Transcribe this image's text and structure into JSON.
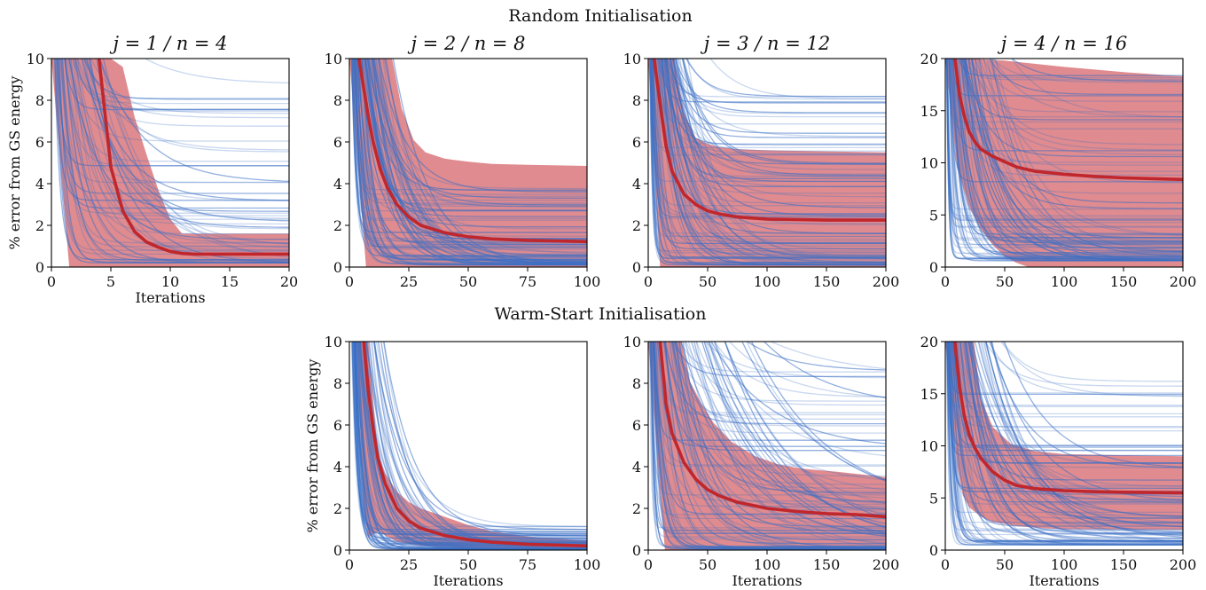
{
  "figure": {
    "row_titles": [
      "Random Initialisation",
      "Warm-Start Initialisation"
    ]
  },
  "chart_data": [
    {
      "type": "line",
      "row": 0,
      "title": "j = 1 / n = 4",
      "xlabel": "Iterations",
      "ylabel": "% error from GS energy",
      "xlim": [
        0,
        20
      ],
      "ylim": [
        0,
        10
      ],
      "xticks": [
        0,
        5,
        10,
        15,
        20
      ],
      "yticks": [
        0,
        2,
        4,
        6,
        8,
        10
      ],
      "grid": false,
      "mean": {
        "x": [
          4,
          5,
          6,
          7,
          8,
          9,
          10,
          11,
          12,
          14,
          16,
          18,
          20
        ],
        "y": [
          10,
          4.8,
          2.7,
          1.7,
          1.2,
          0.95,
          0.75,
          0.65,
          0.62,
          0.62,
          0.62,
          0.62,
          0.62
        ]
      },
      "band_upper": {
        "x": [
          0,
          3,
          4,
          5,
          6,
          7,
          8,
          9,
          10,
          11,
          12,
          14,
          16,
          18,
          20
        ],
        "y": [
          10,
          10,
          10,
          10,
          9.6,
          7.2,
          5.4,
          3.7,
          2.3,
          1.6,
          1.6,
          1.6,
          1.6,
          1.6,
          1.6
        ]
      },
      "band_lower": {
        "x": [
          0,
          1.5,
          2.5,
          3,
          20
        ],
        "y": [
          10,
          0,
          0,
          0,
          0
        ]
      },
      "runs": {
        "count": 60,
        "start": 10,
        "final_min": 0.2,
        "final_max": 9.1,
        "decay_iters": [
          1,
          10
        ]
      }
    },
    {
      "type": "line",
      "row": 0,
      "title": "j = 2 / n = 8",
      "xlabel": "",
      "ylabel": "",
      "xlim": [
        0,
        100
      ],
      "ylim": [
        0,
        10
      ],
      "xticks": [
        0,
        25,
        50,
        75,
        100
      ],
      "yticks": [
        0,
        2,
        4,
        6,
        8,
        10
      ],
      "grid": false,
      "mean": {
        "x": [
          4,
          8,
          10,
          13,
          16,
          20,
          25,
          30,
          40,
          50,
          60,
          75,
          100
        ],
        "y": [
          10,
          7.2,
          6.0,
          4.7,
          3.8,
          3.0,
          2.4,
          2.0,
          1.65,
          1.45,
          1.35,
          1.28,
          1.22
        ]
      },
      "band_upper": {
        "x": [
          0,
          18,
          22,
          27,
          32,
          40,
          50,
          60,
          75,
          100
        ],
        "y": [
          10,
          10,
          7.6,
          6.1,
          5.5,
          5.2,
          5.05,
          4.95,
          4.9,
          4.85
        ]
      },
      "band_lower": {
        "x": [
          0,
          7,
          9,
          100
        ],
        "y": [
          10,
          0,
          0,
          0
        ]
      },
      "runs": {
        "count": 90,
        "start": 10,
        "final_min": 0.1,
        "final_max": 4.3,
        "decay_iters": [
          3,
          35
        ]
      }
    },
    {
      "type": "line",
      "row": 0,
      "title": "j = 3 / n = 12",
      "xlabel": "",
      "ylabel": "",
      "xlim": [
        0,
        200
      ],
      "ylim": [
        0,
        10
      ],
      "xticks": [
        0,
        50,
        100,
        150,
        200
      ],
      "yticks": [
        0,
        2,
        4,
        6,
        8,
        10
      ],
      "grid": false,
      "mean": {
        "x": [
          5,
          10,
          15,
          20,
          30,
          40,
          50,
          60,
          75,
          100,
          150,
          200
        ],
        "y": [
          10,
          7.8,
          5.8,
          4.6,
          3.5,
          3.0,
          2.7,
          2.55,
          2.4,
          2.3,
          2.25,
          2.25
        ]
      },
      "band_upper": {
        "x": [
          0,
          22,
          30,
          40,
          50,
          60,
          75,
          100,
          150,
          200
        ],
        "y": [
          10,
          10,
          7.4,
          6.2,
          5.9,
          5.75,
          5.65,
          5.6,
          5.55,
          5.5
        ]
      },
      "band_lower": {
        "x": [
          0,
          10,
          14,
          200
        ],
        "y": [
          10,
          0,
          0,
          0
        ]
      },
      "runs": {
        "count": 100,
        "start": 10,
        "final_min": 0.1,
        "final_max": 8.4,
        "decay_iters": [
          3,
          60
        ]
      }
    },
    {
      "type": "line",
      "row": 0,
      "title": "j = 4 / n = 16",
      "xlabel": "",
      "ylabel": "",
      "xlim": [
        0,
        200
      ],
      "ylim": [
        0,
        20
      ],
      "xticks": [
        0,
        50,
        100,
        150,
        200
      ],
      "yticks": [
        0,
        5,
        10,
        15,
        20
      ],
      "grid": false,
      "mean": {
        "x": [
          8,
          12,
          16,
          20,
          25,
          30,
          40,
          50,
          60,
          75,
          100,
          125,
          150,
          200
        ],
        "y": [
          20,
          16.5,
          14.5,
          13.0,
          12.0,
          11.3,
          10.6,
          10.1,
          9.6,
          9.2,
          8.9,
          8.7,
          8.55,
          8.4
        ]
      },
      "band_upper": {
        "x": [
          0,
          20,
          50,
          100,
          150,
          200
        ],
        "y": [
          20,
          20,
          19.8,
          19.2,
          18.7,
          18.3
        ]
      },
      "band_lower": {
        "x": [
          0,
          10,
          20,
          30,
          40,
          50,
          60,
          70,
          200
        ],
        "y": [
          20,
          9.5,
          5.8,
          3.6,
          2.1,
          1.0,
          0.4,
          0,
          0
        ]
      },
      "runs": {
        "count": 100,
        "start": 20,
        "final_min": 0.6,
        "final_max": 18.6,
        "decay_iters": [
          3,
          80
        ]
      }
    },
    {
      "type": "line",
      "row": 1,
      "title": "",
      "xlabel": "Iterations",
      "ylabel": "% error from GS energy",
      "xlim": [
        0,
        100
      ],
      "ylim": [
        0,
        10
      ],
      "xticks": [
        0,
        25,
        50,
        75,
        100
      ],
      "yticks": [
        0,
        2,
        4,
        6,
        8,
        10
      ],
      "grid": false,
      "mean": {
        "x": [
          6,
          8,
          10,
          12,
          15,
          20,
          25,
          30,
          40,
          50,
          60,
          75,
          100
        ],
        "y": [
          10,
          7.6,
          5.8,
          4.4,
          3.2,
          2.0,
          1.4,
          1.05,
          0.7,
          0.5,
          0.38,
          0.28,
          0.2
        ]
      },
      "band_upper": {
        "x": [
          0,
          8,
          10,
          12,
          15,
          20,
          25,
          30,
          40,
          50,
          60,
          75,
          100
        ],
        "y": [
          10,
          10,
          7.2,
          4.6,
          3.7,
          2.8,
          2.3,
          2.0,
          1.6,
          1.2,
          0.9,
          0.65,
          0.45
        ]
      },
      "band_lower": {
        "x": [
          3,
          6,
          8,
          12,
          20,
          30,
          50,
          75,
          100
        ],
        "y": [
          10,
          2.0,
          0.6,
          0.9,
          0.4,
          0.2,
          0.1,
          0.08,
          0.05
        ]
      },
      "runs": {
        "count": 80,
        "start": 10,
        "final_min": 0.05,
        "final_max": 1.2,
        "decay_iters": [
          4,
          30
        ]
      }
    },
    {
      "type": "line",
      "row": 1,
      "title": "",
      "xlabel": "Iterations",
      "ylabel": "",
      "xlim": [
        0,
        200
      ],
      "ylim": [
        0,
        10
      ],
      "xticks": [
        0,
        50,
        100,
        150,
        200
      ],
      "yticks": [
        0,
        2,
        4,
        6,
        8,
        10
      ],
      "grid": false,
      "mean": {
        "x": [
          10,
          15,
          20,
          30,
          40,
          50,
          60,
          75,
          100,
          125,
          150,
          175,
          200
        ],
        "y": [
          10,
          7.0,
          5.6,
          4.2,
          3.4,
          2.9,
          2.6,
          2.3,
          2.0,
          1.85,
          1.75,
          1.7,
          1.6
        ]
      },
      "band_upper": {
        "x": [
          0,
          28,
          35,
          45,
          55,
          70,
          90,
          110,
          130,
          160,
          200
        ],
        "y": [
          10,
          10,
          8.1,
          7.0,
          6.1,
          5.2,
          4.5,
          4.1,
          3.9,
          3.75,
          3.5
        ]
      },
      "band_lower": {
        "x": [
          0,
          14,
          20,
          200
        ],
        "y": [
          10,
          0,
          0,
          0
        ]
      },
      "runs": {
        "count": 100,
        "start": 10,
        "final_min": 0.05,
        "final_max": 8.6,
        "decay_iters": [
          3,
          150
        ]
      }
    },
    {
      "type": "line",
      "row": 1,
      "title": "",
      "xlabel": "Iterations",
      "ylabel": "",
      "xlim": [
        0,
        200
      ],
      "ylim": [
        0,
        20
      ],
      "xticks": [
        0,
        50,
        100,
        150,
        200
      ],
      "yticks": [
        0,
        5,
        10,
        15,
        20
      ],
      "grid": false,
      "mean": {
        "x": [
          8,
          12,
          16,
          20,
          25,
          30,
          40,
          50,
          60,
          75,
          100,
          125,
          150,
          200
        ],
        "y": [
          20,
          15.6,
          12.9,
          11.1,
          9.8,
          8.8,
          7.5,
          6.7,
          6.2,
          5.9,
          5.7,
          5.6,
          5.55,
          5.5
        ]
      },
      "band_upper": {
        "x": [
          0,
          24,
          30,
          40,
          55,
          75,
          100,
          150,
          200
        ],
        "y": [
          20,
          20,
          14.5,
          11.8,
          10.2,
          9.5,
          9.2,
          9.1,
          9.0
        ]
      },
      "band_lower": {
        "x": [
          0,
          10,
          15,
          20,
          30,
          40,
          60,
          80,
          100,
          200
        ],
        "y": [
          20,
          8,
          5.2,
          4.1,
          3.2,
          2.7,
          2.3,
          2.1,
          2.0,
          1.95
        ]
      },
      "runs": {
        "count": 100,
        "start": 20,
        "final_min": 0.5,
        "final_max": 16.2,
        "decay_iters": [
          3,
          90
        ]
      }
    }
  ],
  "colors": {
    "runs": "#3b6fc4",
    "mean": "#c0272d",
    "band": "#d9777b",
    "axes": "#000000"
  }
}
